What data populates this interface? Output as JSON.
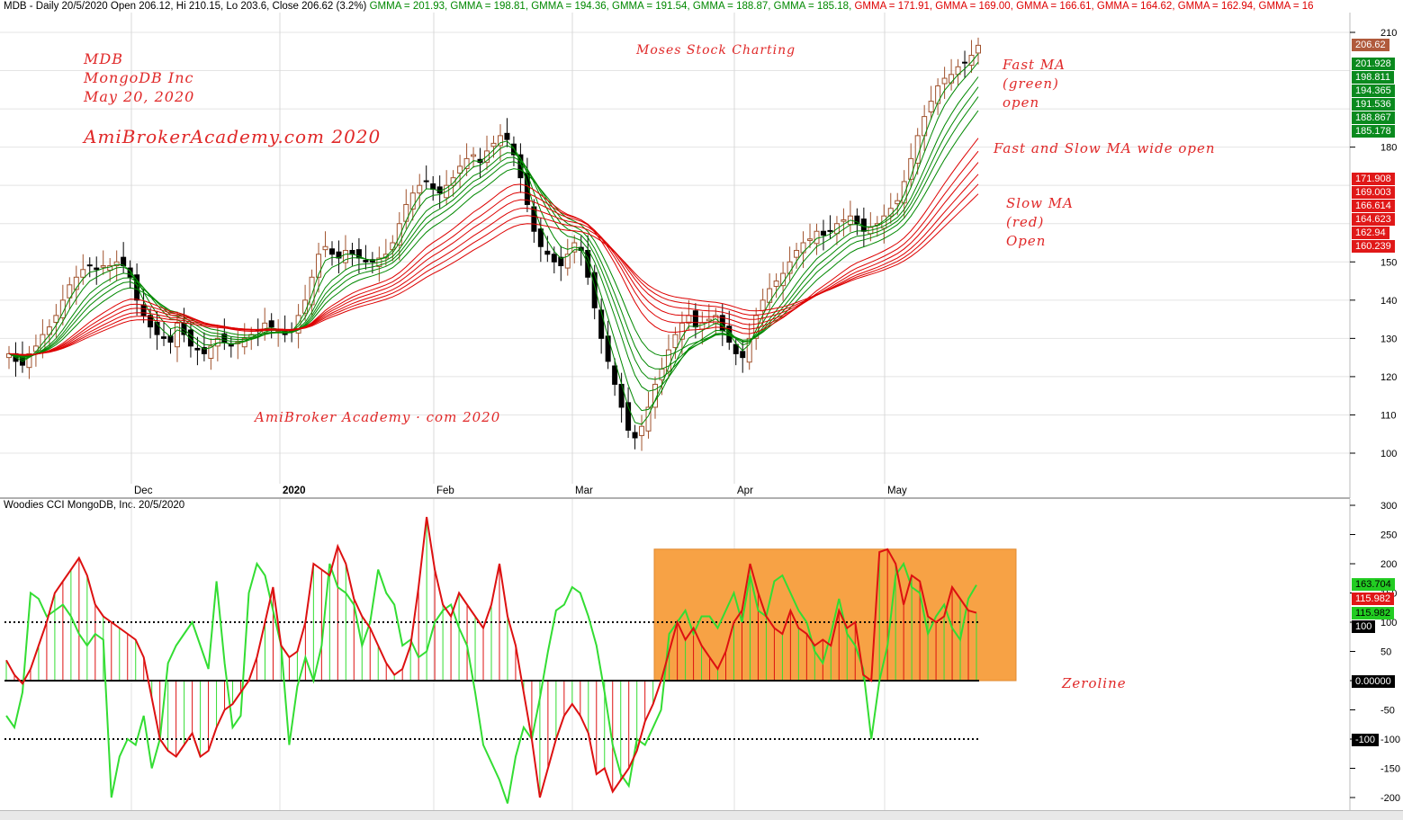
{
  "header": {
    "prefix": "MDB - Daily 20/5/2020 Open 206.12, Hi 210.15, Lo 203.6, Close 206.62 (3.2%)",
    "gmma_items": [
      {
        "text": " GMMA = 201.93,",
        "color": "#008800"
      },
      {
        "text": " GMMA = 198.81,",
        "color": "#008800"
      },
      {
        "text": " GMMA = 194.36,",
        "color": "#008800"
      },
      {
        "text": " GMMA = 191.54,",
        "color": "#008800"
      },
      {
        "text": " GMMA = 188.87,",
        "color": "#008800"
      },
      {
        "text": " GMMA = 185.18,",
        "color": "#008800"
      },
      {
        "text": " GMMA = 171.91,",
        "color": "#dd0000"
      },
      {
        "text": " GMMA = 169.00,",
        "color": "#dd0000"
      },
      {
        "text": " GMMA = 166.61,",
        "color": "#dd0000"
      },
      {
        "text": " GMMA = 164.62,",
        "color": "#dd0000"
      },
      {
        "text": " GMMA = 162.94,",
        "color": "#dd0000"
      },
      {
        "text": " GMMA = 16",
        "color": "#dd0000"
      }
    ]
  },
  "annotations": {
    "ticker": "MDB",
    "company": "MongoDB Inc",
    "date": "May 20, 2020",
    "site": "AmiBrokerAcademy.com  2020",
    "moses": "Moses Stock Charting",
    "fast_ma_1": "Fast MA",
    "fast_ma_2": "(green)",
    "fast_ma_3": "open",
    "wide_open": "Fast and Slow MA wide open",
    "slow_ma_1": "Slow MA",
    "slow_ma_2": "(red)",
    "slow_ma_3": "Open",
    "academy": "AmiBroker Academy · com 2020",
    "zeroline": "Zeroline"
  },
  "cci_pane": {
    "title": "Woodies CCI  MongoDB, Inc. 20/5/2020"
  },
  "price_badges": [
    {
      "label": "206.62",
      "color": "#b05a3c"
    },
    {
      "label": "201.928",
      "color": "#0a8a1e"
    },
    {
      "label": "198.811",
      "color": "#0a8a1e"
    },
    {
      "label": "194.365",
      "color": "#0a8a1e"
    },
    {
      "label": "191.536",
      "color": "#0a8a1e"
    },
    {
      "label": "188.867",
      "color": "#0a8a1e"
    },
    {
      "label": "185.178",
      "color": "#0a8a1e"
    },
    {
      "label": "171.908",
      "color": "#e01818"
    },
    {
      "label": "169.003",
      "color": "#e01818"
    },
    {
      "label": "166.614",
      "color": "#e01818"
    },
    {
      "label": "164.623",
      "color": "#e01818"
    },
    {
      "label": "162.94",
      "color": "#e01818"
    },
    {
      "label": "160.239",
      "color": "#e01818"
    }
  ],
  "cci_badges": [
    {
      "label": "163.704",
      "color": "#22cc22",
      "text_color": "#000000"
    },
    {
      "label": "115.982",
      "color": "#e01818",
      "text_color": "#ffffff"
    },
    {
      "label": "115.982",
      "color": "#22cc22",
      "text_color": "#000000"
    },
    {
      "label": "100",
      "color": "#000000",
      "text_color": "#ffffff"
    },
    {
      "label": "0.00000",
      "color": "#000000",
      "text_color": "#ffffff"
    },
    {
      "label": "-100",
      "color": "#000000",
      "text_color": "#ffffff"
    }
  ],
  "colors": {
    "green_ma": "#008800",
    "red_ma": "#dd0000",
    "candle_up": "#a0522d",
    "candle_down": "#000000",
    "cci_green": "#33dd33",
    "cci_red": "#dd1111",
    "highlight": "#f7a245"
  },
  "chart_data": [
    {
      "type": "candlestick",
      "title": "MDB - Daily 20/5/2020",
      "y_ticks": [
        100,
        110,
        120,
        130,
        140,
        150,
        180,
        210
      ],
      "ylim": [
        93,
        212
      ],
      "x_labels": [
        "Dec",
        "2020",
        "Feb",
        "Mar",
        "Apr",
        "May"
      ],
      "grid": true,
      "close_series": [
        126,
        124,
        123,
        126,
        128,
        131,
        133,
        136,
        140,
        144,
        146,
        148,
        149,
        148,
        149,
        149,
        150,
        149,
        146,
        140,
        136,
        133,
        131,
        130,
        129,
        134,
        131,
        128,
        127,
        126,
        128,
        130,
        129,
        128,
        129,
        130,
        131,
        132,
        134,
        133,
        132,
        131,
        132,
        136,
        140,
        146,
        152,
        154,
        152,
        151,
        153,
        152,
        151,
        150,
        150,
        151,
        152,
        155,
        160,
        165,
        168,
        170,
        171,
        169,
        168,
        170,
        172,
        175,
        177,
        178,
        176,
        179,
        181,
        183,
        182,
        178,
        172,
        165,
        158,
        154,
        152,
        150,
        149,
        152,
        155,
        153,
        146,
        138,
        130,
        124,
        118,
        112,
        106,
        104,
        107,
        112,
        118,
        122,
        127,
        131,
        134,
        136,
        133,
        134,
        135,
        136,
        132,
        129,
        126,
        125,
        130,
        136,
        140,
        143,
        145,
        147,
        150,
        153,
        155,
        156,
        158,
        157,
        158,
        160,
        161,
        162,
        160,
        158,
        159,
        160,
        162,
        164,
        166,
        171,
        177,
        183,
        188,
        192,
        196,
        198,
        199,
        201,
        202,
        204,
        206.62
      ],
      "gmma_fast_last": [
        201.93,
        198.81,
        194.36,
        191.54,
        188.87,
        185.18
      ],
      "gmma_slow_last": [
        171.91,
        169.0,
        166.61,
        164.62,
        162.94,
        160.24
      ]
    },
    {
      "type": "line",
      "title": "Woodies CCI  MongoDB, Inc. 20/5/2020",
      "y_ticks": [
        -200,
        -150,
        -100,
        -50,
        0,
        50,
        100,
        150,
        200,
        250,
        300
      ],
      "ylim": [
        -215,
        305
      ],
      "reference_lines": [
        100,
        0,
        -100
      ],
      "series": [
        {
          "values": [
            35,
            10,
            -5,
            20,
            60,
            100,
            150,
            170,
            190,
            210,
            180,
            130,
            110,
            100,
            90,
            80,
            70,
            40,
            -30,
            -100,
            -120,
            -130,
            -110,
            -90,
            -130,
            -120,
            -80,
            -50,
            -40,
            -20,
            0,
            40,
            100,
            160,
            60,
            40,
            50,
            100,
            200,
            190,
            180,
            230,
            200,
            140,
            110,
            90,
            60,
            30,
            10,
            20,
            60,
            160,
            280,
            190,
            130,
            110,
            150,
            130,
            110,
            90,
            130,
            200,
            110,
            60,
            -20,
            -100,
            -200,
            -150,
            -100,
            -60,
            -40,
            -60,
            -90,
            -160,
            -150,
            -190,
            -170,
            -150,
            -120,
            -70,
            -40,
            0,
            50,
            100,
            70,
            90,
            60,
            40,
            20,
            50,
            100,
            120,
            200,
            150,
            110,
            90,
            80,
            120,
            90,
            80,
            60,
            70,
            60,
            120,
            90,
            100,
            10,
            0,
            220,
            225,
            200,
            130,
            180,
            170,
            110,
            100,
            110,
            160,
            140,
            120,
            115.98
          ]
        },
        {
          "values": [
            -60,
            -80,
            -20,
            150,
            140,
            110,
            120,
            130,
            110,
            80,
            60,
            80,
            70,
            -200,
            -130,
            -100,
            -110,
            -60,
            -150,
            -100,
            30,
            60,
            80,
            100,
            60,
            20,
            170,
            30,
            -80,
            -60,
            150,
            200,
            180,
            120,
            60,
            -110,
            -10,
            40,
            0,
            60,
            200,
            160,
            150,
            130,
            60,
            100,
            190,
            150,
            130,
            60,
            70,
            40,
            50,
            100,
            120,
            130,
            90,
            60,
            -20,
            -110,
            -140,
            -170,
            -210,
            -130,
            -80,
            -100,
            -30,
            50,
            120,
            130,
            160,
            150,
            110,
            60,
            -20,
            -110,
            -160,
            -180,
            -100,
            -110,
            -80,
            -50,
            80,
            100,
            120,
            80,
            110,
            110,
            90,
            120,
            150,
            100,
            180,
            120,
            110,
            170,
            180,
            150,
            120,
            100,
            50,
            30,
            80,
            140,
            80,
            60,
            20,
            -100,
            0,
            60,
            180,
            200,
            160,
            150,
            80,
            110,
            130,
            90,
            70,
            140,
            163.7
          ]
        }
      ]
    }
  ]
}
